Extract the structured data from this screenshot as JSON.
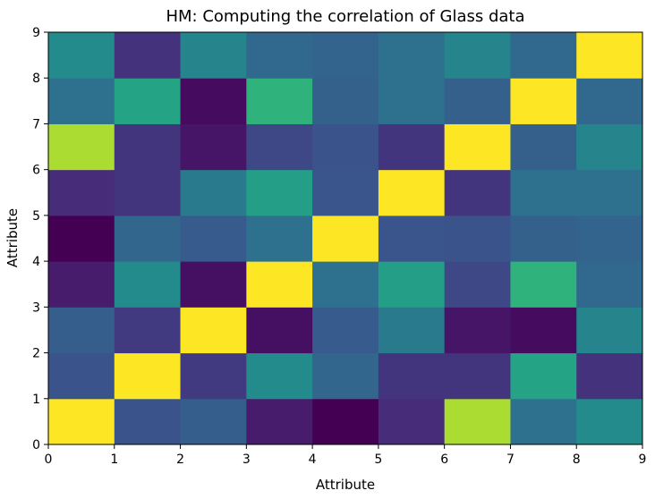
{
  "chart_data": {
    "type": "heatmap",
    "title": "HM: Computing the correlation of Glass data",
    "xlabel": "Attribute",
    "ylabel": "Attribute",
    "xlim": [
      0,
      9
    ],
    "ylim": [
      0,
      9
    ],
    "xticks": [
      "0",
      "1",
      "2",
      "3",
      "4",
      "5",
      "6",
      "7",
      "8",
      "9"
    ],
    "yticks": [
      "0",
      "1",
      "2",
      "3",
      "4",
      "5",
      "6",
      "7",
      "8",
      "9"
    ],
    "colormap": "viridis",
    "value_range": [
      -0.6,
      1.0
    ],
    "rows_bottom_to_top": [
      [
        1.0,
        -0.19,
        -0.12,
        -0.44,
        -0.6,
        -0.36,
        0.81,
        0.0,
        0.16
      ],
      [
        -0.19,
        1.0,
        -0.3,
        0.16,
        -0.07,
        -0.32,
        -0.32,
        0.34,
        -0.33
      ],
      [
        -0.12,
        -0.3,
        1.0,
        -0.51,
        -0.14,
        0.06,
        -0.48,
        -0.54,
        0.12
      ],
      [
        -0.44,
        0.16,
        -0.51,
        1.0,
        0.0,
        0.3,
        -0.24,
        0.44,
        -0.06
      ],
      [
        -0.6,
        -0.07,
        -0.14,
        0.0,
        1.0,
        -0.18,
        -0.19,
        -0.1,
        -0.08
      ],
      [
        -0.36,
        -0.32,
        0.06,
        0.3,
        -0.18,
        1.0,
        -0.32,
        0.0,
        0.0
      ],
      [
        0.81,
        -0.32,
        -0.48,
        -0.24,
        -0.19,
        -0.32,
        1.0,
        -0.11,
        0.12
      ],
      [
        0.0,
        0.34,
        -0.54,
        0.44,
        -0.1,
        0.0,
        -0.11,
        1.0,
        -0.06
      ],
      [
        0.16,
        -0.33,
        0.12,
        -0.06,
        -0.08,
        0.0,
        0.12,
        -0.06,
        1.0
      ]
    ]
  }
}
